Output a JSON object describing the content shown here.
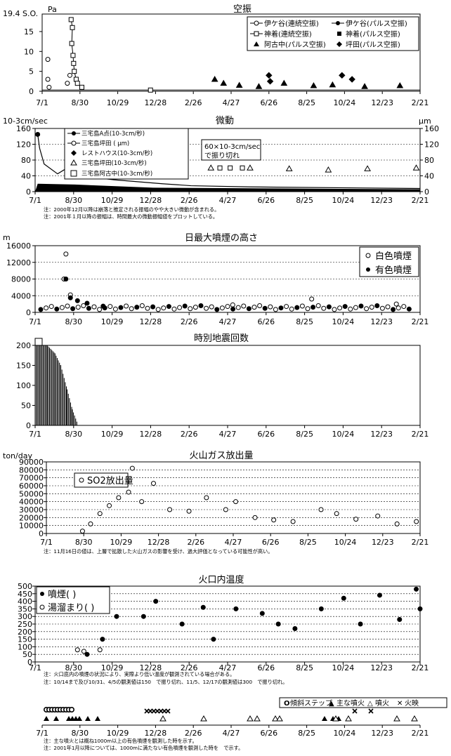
{
  "x_ticks": [
    "7/1",
    "8/30",
    "10/29",
    "12/28",
    "2/26",
    "4/27",
    "6/26",
    "8/25",
    "10/24",
    "12/23",
    "2/21"
  ],
  "panels": {
    "airshock": {
      "title": "空振",
      "unit": "Pa",
      "y_max_label": "19.4 S.O.",
      "y_ticks": [
        "15",
        "10",
        "5",
        "0"
      ],
      "legend": [
        "伊ケ谷(連続空振)",
        "伊ケ谷(パルス空振)",
        "神着(連続空振)",
        "神着(パルス空振)",
        "阿古中(パルス空振)",
        "坪田(パルス空振)"
      ]
    },
    "tremor": {
      "title": "微動",
      "unit_left": "10-3cm/sec",
      "unit_right": "μm",
      "y_ticks": [
        "160",
        "120",
        "80",
        "40",
        "0"
      ],
      "legend": [
        "三宅島A点(10-3cm/秒)",
        "三宅島坪田 ( μm)",
        "レストハウス(10-3cm/秒)",
        "三宅島坪田(10-3cm/秒)",
        "三宅島阿古中(10-3cm/秒)"
      ],
      "callout": [
        "60×10-3cm/sec",
        "で振り切れ"
      ],
      "notes": [
        "注：2000年12月以降は崩落と推定される振幅のやや大きい微動が含まれる。",
        "注：2001年１月以降の振幅は、時間最大の微動振幅値をプロットしている。"
      ]
    },
    "plume": {
      "title": "日最大噴煙の高さ",
      "unit": "m",
      "y_ticks": [
        "16000",
        "12000",
        "8000",
        "4000",
        "0"
      ],
      "legend": [
        "白色噴煙",
        "有色噴煙"
      ]
    },
    "quake": {
      "title": "時別地震回数",
      "y_ticks": [
        "200",
        "150",
        "100",
        "50",
        "0"
      ]
    },
    "gas": {
      "title": "火山ガス放出量",
      "unit": "ton/day",
      "y_ticks": [
        "90000",
        "80000",
        "70000",
        "60000",
        "50000",
        "40000",
        "30000",
        "20000",
        "10000",
        "0"
      ],
      "legend": "SO2放出量",
      "note": "注：11月16日の値は、上層で拡散した火山ガスの影響を受け、過大評価となっている可能性が高い。"
    },
    "temp": {
      "title": "火口内温度",
      "y_ticks": [
        "500",
        "450",
        "400",
        "350",
        "300",
        "250",
        "200",
        "150",
        "100",
        "50",
        "0"
      ],
      "legend": [
        "噴煙( )",
        "湯溜まり( )"
      ],
      "notes": [
        "注：火口底内の噴煙の状況により、実際より低い温度が観測されている場合がある。",
        "注：10/14まで及び10/31、4/5の観測値は150　で振り切れ、11/5、12/17の観測値は300　で振り切れ。"
      ]
    },
    "events": {
      "legend": [
        "傾斜ステップ",
        "主な噴火",
        "噴火",
        "火映"
      ],
      "legend_symbols": [
        "O",
        "▲",
        "△",
        "✕"
      ],
      "notes": [
        "注：主な噴火とは概ね1000m以上の有色噴煙を観測した時を示す。",
        "注：2001年1月以降については、1000mに満たない有色噴煙を観測した時を　で示す。"
      ]
    }
  },
  "chart_data": [
    {
      "type": "scatter",
      "title": "空振",
      "ylabel": "Pa",
      "ylim": [
        0,
        19.4
      ],
      "x_range": [
        "2000-07-01",
        "2002-02-21"
      ],
      "series": [
        {
          "name": "伊ケ谷(連続空振)",
          "points": [
            [
              "2000-07-10",
              8
            ],
            [
              "2000-07-10",
              3
            ],
            [
              "2000-07-12",
              1
            ],
            [
              "2000-08-10",
              2
            ],
            [
              "2000-08-14",
              4
            ]
          ]
        },
        {
          "name": "神着(連続空振)",
          "points": [
            [
              "2000-08-16",
              18
            ],
            [
              "2000-08-18",
              16
            ],
            [
              "2000-08-17",
              12
            ],
            [
              "2000-08-19",
              9
            ],
            [
              "2000-08-20",
              7
            ],
            [
              "2000-08-21",
              5
            ],
            [
              "2000-08-24",
              3
            ],
            [
              "2000-08-26",
              2
            ],
            [
              "2000-09-02",
              1
            ],
            [
              "2000-12-20",
              0.3
            ]
          ]
        },
        {
          "name": "阿古中(パルス空振)",
          "points": [
            [
              "2001-04-01",
              3
            ],
            [
              "2001-04-15",
              2
            ],
            [
              "2001-05-10",
              1.5
            ],
            [
              "2001-06-10",
              1.2
            ],
            [
              "2001-07-20",
              2
            ],
            [
              "2001-09-05",
              1.4
            ],
            [
              "2001-10-05",
              1.6
            ],
            [
              "2001-11-25",
              1.2
            ],
            [
              "2002-01-20",
              1.4
            ]
          ]
        },
        {
          "name": "坪田(パルス空振)",
          "points": [
            [
              "2001-06-26",
              4
            ],
            [
              "2001-06-28",
              2.5
            ],
            [
              "2001-10-20",
              4
            ],
            [
              "2001-11-05",
              3
            ]
          ]
        }
      ]
    },
    {
      "type": "line",
      "title": "微動",
      "ylabel": "10-3cm/sec",
      "ylim": [
        0,
        160
      ],
      "series": [
        {
          "name": "三宅島A点(10-3cm/秒)",
          "points": [
            [
              "2000-07-05",
              145
            ],
            [
              "2000-07-08",
              110
            ],
            [
              "2000-07-15",
              70
            ],
            [
              "2000-08-05",
              45
            ],
            [
              "2000-08-20",
              60
            ],
            [
              "2000-09-10",
              40
            ],
            [
              "2000-11-01",
              30
            ],
            [
              "2001-01-15",
              20
            ],
            [
              "2001-03-01",
              15
            ],
            [
              "2001-06-01",
              12
            ],
            [
              "2002-02-21",
              8
            ]
          ]
        },
        {
          "name": "三宅島坪田(10-3cm/秒)",
          "points": [
            [
              "2001-04-01",
              60
            ],
            [
              "2001-06-01",
              60
            ],
            [
              "2001-08-01",
              58
            ],
            [
              "2001-10-01",
              55
            ],
            [
              "2001-12-01",
              58
            ],
            [
              "2002-02-15",
              60
            ]
          ]
        }
      ]
    },
    {
      "type": "scatter",
      "title": "日最大噴煙の高さ",
      "ylabel": "m",
      "ylim": [
        0,
        16000
      ],
      "series": [
        {
          "name": "白色噴煙",
          "points": [
            [
              "2000-08-18",
              14000
            ],
            [
              "2000-08-15",
              8000
            ],
            [
              "2000-08-25",
              4200
            ],
            [
              "2001-05-05",
              1800
            ],
            [
              "2001-09-05",
              3200
            ],
            [
              "2002-01-15",
              2000
            ]
          ]
        },
        {
          "name": "有色噴煙",
          "points": [
            [
              "2000-08-18",
              8000
            ],
            [
              "2000-08-25",
              3500
            ],
            [
              "2000-09-05",
              2800
            ],
            [
              "2000-09-20",
              2200
            ],
            [
              "2000-10-15",
              1500
            ]
          ]
        }
      ]
    },
    {
      "type": "bar",
      "title": "時別地震回数",
      "ylim": [
        0,
        200
      ],
      "series": [
        {
          "name": "",
          "points": [
            [
              "2000-07-01",
              200
            ],
            [
              "2000-07-10",
              200
            ],
            [
              "2000-07-20",
              200
            ],
            [
              "2000-08-01",
              180
            ],
            [
              "2000-08-10",
              150
            ],
            [
              "2000-08-20",
              90
            ],
            [
              "2000-08-28",
              40
            ],
            [
              "2000-09-05",
              5
            ]
          ]
        }
      ]
    },
    {
      "type": "scatter",
      "title": "火山ガス放出量",
      "ylabel": "ton/day",
      "ylim": [
        0,
        90000
      ],
      "series": [
        {
          "name": "SO2放出量",
          "points": [
            [
              "2000-08-28",
              3000
            ],
            [
              "2000-09-10",
              12000
            ],
            [
              "2000-09-25",
              25000
            ],
            [
              "2000-10-10",
              35000
            ],
            [
              "2000-10-25",
              45000
            ],
            [
              "2000-11-10",
              52000
            ],
            [
              "2000-11-16",
              82000
            ],
            [
              "2000-12-01",
              40000
            ],
            [
              "2000-12-20",
              63000
            ],
            [
              "2001-01-15",
              30000
            ],
            [
              "2001-02-15",
              28000
            ],
            [
              "2001-03-15",
              45000
            ],
            [
              "2001-04-15",
              30000
            ],
            [
              "2001-05-01",
              40000
            ],
            [
              "2001-06-01",
              20000
            ],
            [
              "2001-07-01",
              17000
            ],
            [
              "2001-08-01",
              15000
            ],
            [
              "2001-09-15",
              30000
            ],
            [
              "2001-10-10",
              25000
            ],
            [
              "2001-11-10",
              18000
            ],
            [
              "2001-12-15",
              22000
            ],
            [
              "2002-01-15",
              12000
            ],
            [
              "2002-02-15",
              15000
            ]
          ]
        }
      ]
    },
    {
      "type": "scatter",
      "title": "火口内温度",
      "ylim": [
        0,
        500
      ],
      "series": [
        {
          "name": "噴煙( )",
          "points": [
            [
              "2000-09-20",
              50
            ],
            [
              "2000-10-14",
              150
            ],
            [
              "2000-11-05",
              300
            ],
            [
              "2000-12-17",
              300
            ],
            [
              "2001-01-05",
              400
            ],
            [
              "2001-02-15",
              250
            ],
            [
              "2001-03-20",
              360
            ],
            [
              "2001-04-05",
              150
            ],
            [
              "2001-05-10",
              350
            ],
            [
              "2001-06-20",
              320
            ],
            [
              "2001-07-15",
              250
            ],
            [
              "2001-08-10",
              220
            ],
            [
              "2001-09-20",
              350
            ],
            [
              "2001-10-25",
              420
            ],
            [
              "2001-11-20",
              250
            ],
            [
              "2001-12-20",
              440
            ],
            [
              "2002-01-20",
              280
            ],
            [
              "2002-02-15",
              480
            ],
            [
              "2002-02-21",
              350
            ]
          ]
        },
        {
          "name": "湯溜まり( )",
          "points": [
            [
              "2000-09-05",
              80
            ],
            [
              "2000-09-15",
              70
            ],
            [
              "2000-10-10",
              80
            ]
          ]
        }
      ]
    }
  ]
}
